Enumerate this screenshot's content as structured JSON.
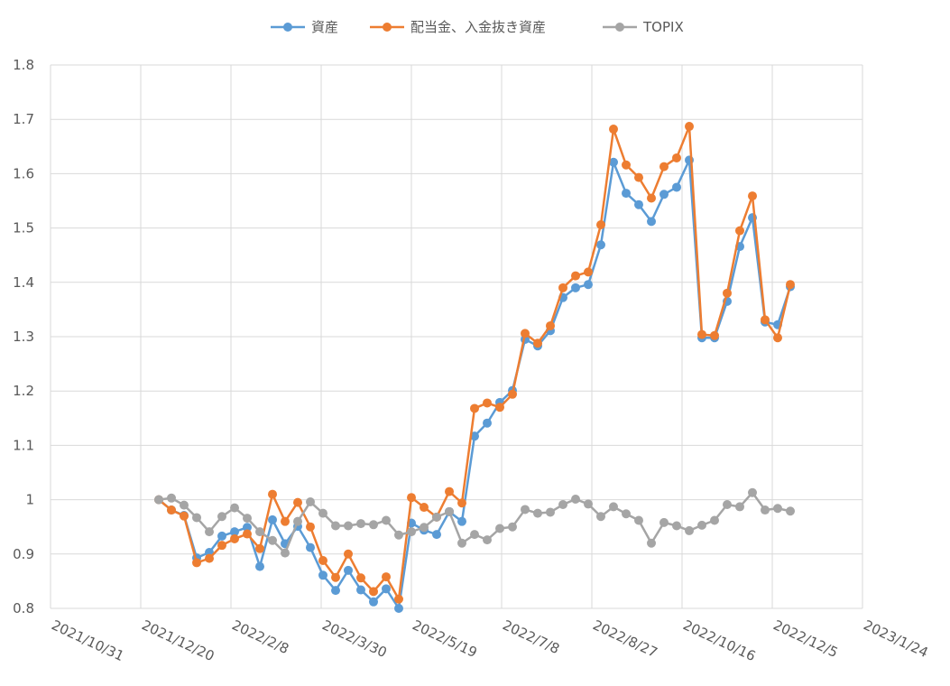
{
  "chart_data": {
    "type": "line",
    "title": "",
    "xlabel": "",
    "ylabel": "",
    "ylim": [
      0.8,
      1.8
    ],
    "yticks": [
      "0.8",
      "0.9",
      "1",
      "1.1",
      "1.2",
      "1.3",
      "1.4",
      "1.5",
      "1.6",
      "1.7",
      "1.8"
    ],
    "xlim": [
      "2021-10-31",
      "2023-01-24"
    ],
    "xticks": [
      "2021/10/31",
      "2021/12/20",
      "2022/2/8",
      "2022/3/30",
      "2022/5/19",
      "2022/7/8",
      "2022/8/27",
      "2022/10/16",
      "2022/12/5",
      "2023/1/24"
    ],
    "grid": true,
    "legend_position": "top",
    "dates": [
      "2021-12-30",
      "2022-01-06",
      "2022-01-13",
      "2022-01-20",
      "2022-01-27",
      "2022-02-03",
      "2022-02-10",
      "2022-02-17",
      "2022-02-24",
      "2022-03-03",
      "2022-03-10",
      "2022-03-17",
      "2022-03-24",
      "2022-03-31",
      "2022-04-07",
      "2022-04-14",
      "2022-04-21",
      "2022-04-28",
      "2022-05-05",
      "2022-05-12",
      "2022-05-19",
      "2022-05-26",
      "2022-06-02",
      "2022-06-09",
      "2022-06-16",
      "2022-06-23",
      "2022-06-30",
      "2022-07-07",
      "2022-07-14",
      "2022-07-21",
      "2022-07-28",
      "2022-08-04",
      "2022-08-11",
      "2022-08-18",
      "2022-08-25",
      "2022-09-01",
      "2022-09-08",
      "2022-09-15",
      "2022-09-22",
      "2022-09-29",
      "2022-10-06",
      "2022-10-13",
      "2022-10-20",
      "2022-10-27",
      "2022-11-03",
      "2022-11-10",
      "2022-11-17",
      "2022-11-24",
      "2022-12-01",
      "2022-12-08",
      "2022-12-15"
    ],
    "series": [
      {
        "name": "資産",
        "color": "#5B9BD5",
        "values": [
          1.0,
          0.981,
          0.971,
          0.893,
          0.903,
          0.933,
          0.941,
          0.949,
          0.877,
          0.963,
          0.919,
          0.951,
          0.912,
          0.861,
          0.833,
          0.87,
          0.834,
          0.812,
          0.836,
          0.8,
          0.957,
          0.944,
          0.936,
          0.978,
          0.96,
          1.117,
          1.141,
          1.179,
          1.201,
          1.295,
          1.283,
          1.311,
          1.372,
          1.39,
          1.396,
          1.469,
          1.621,
          1.564,
          1.543,
          1.512,
          1.562,
          1.575,
          1.625,
          1.298,
          1.298,
          1.365,
          1.466,
          1.519,
          1.327,
          1.322,
          1.392
        ]
      },
      {
        "name": "配当金、入金抜き資産",
        "color": "#ED7D31",
        "values": [
          1.0,
          0.981,
          0.97,
          0.884,
          0.892,
          0.916,
          0.928,
          0.937,
          0.91,
          1.01,
          0.96,
          0.995,
          0.95,
          0.888,
          0.857,
          0.9,
          0.856,
          0.831,
          0.858,
          0.817,
          1.004,
          0.986,
          0.968,
          1.015,
          0.994,
          1.168,
          1.178,
          1.17,
          1.194,
          1.306,
          1.288,
          1.32,
          1.39,
          1.412,
          1.419,
          1.506,
          1.682,
          1.616,
          1.593,
          1.555,
          1.613,
          1.629,
          1.687,
          1.304,
          1.302,
          1.38,
          1.495,
          1.559,
          1.331,
          1.298,
          1.396
        ]
      },
      {
        "name": "TOPIX",
        "color": "#A5A5A5",
        "values": [
          1.0,
          1.003,
          0.99,
          0.967,
          0.941,
          0.969,
          0.985,
          0.966,
          0.941,
          0.925,
          0.902,
          0.96,
          0.996,
          0.975,
          0.952,
          0.952,
          0.956,
          0.954,
          0.962,
          0.935,
          0.941,
          0.949,
          0.968,
          0.978,
          0.92,
          0.936,
          0.926,
          0.947,
          0.95,
          0.982,
          0.975,
          0.977,
          0.991,
          1.001,
          0.992,
          0.969,
          0.987,
          0.974,
          0.962,
          0.92,
          0.958,
          0.952,
          0.943,
          0.953,
          0.962,
          0.991,
          0.987,
          1.013,
          0.981,
          0.984,
          0.979
        ]
      }
    ]
  }
}
